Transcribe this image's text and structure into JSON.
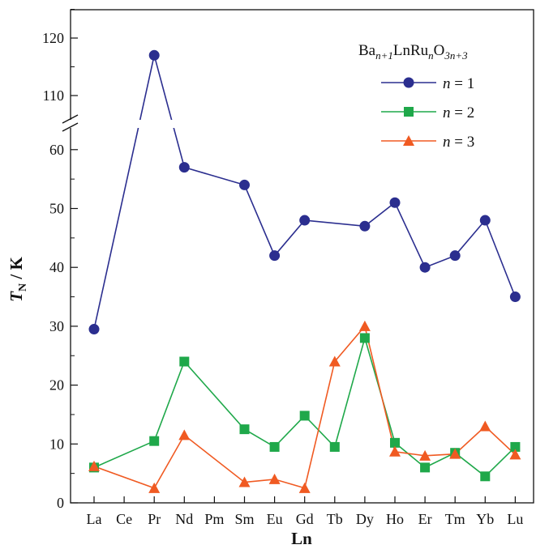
{
  "chart_data": {
    "type": "line",
    "categories": [
      "La",
      "Ce",
      "Pr",
      "Nd",
      "Pm",
      "Sm",
      "Eu",
      "Gd",
      "Tb",
      "Dy",
      "Ho",
      "Er",
      "Tm",
      "Yb",
      "Lu"
    ],
    "xlabel": "Ln",
    "ylabel_main": "T",
    "ylabel_sub": "N",
    "ylabel_rest": " / K",
    "y_ticks_lower": [
      0,
      10,
      20,
      30,
      40,
      50,
      60
    ],
    "y_ticks_upper": [
      110,
      120
    ],
    "y_axis_break": {
      "lower_range": [
        0,
        65
      ],
      "upper_range": [
        105,
        125
      ]
    },
    "legend_title": {
      "base": "Ba",
      "sub1": "n+1",
      "mid": "LnRu",
      "sub2": "n",
      "o": "O",
      "sub3": "3n+3"
    },
    "legend_position": "top-right",
    "series": [
      {
        "name": "n = 1",
        "name_italic": "n",
        "name_rest": " = 1",
        "color": "#2b2e8f",
        "marker": "circle",
        "values": [
          29.5,
          null,
          117,
          57,
          null,
          54,
          42,
          48,
          null,
          47,
          51,
          40,
          42,
          48,
          35
        ]
      },
      {
        "name": "n = 2",
        "name_italic": "n",
        "name_rest": " = 2",
        "color": "#1fa84a",
        "marker": "square",
        "values": [
          6,
          null,
          10.5,
          24,
          null,
          12.5,
          9.5,
          14.8,
          9.5,
          28,
          10.2,
          6,
          8.5,
          4.5,
          9.5
        ]
      },
      {
        "name": "n = 3",
        "name_italic": "n",
        "name_rest": " = 3",
        "color": "#f05a22",
        "marker": "triangle",
        "values": [
          6.2,
          null,
          2.5,
          11.5,
          null,
          3.5,
          4,
          2.5,
          24,
          30,
          8.7,
          8,
          8.3,
          13,
          8.2
        ]
      }
    ]
  }
}
